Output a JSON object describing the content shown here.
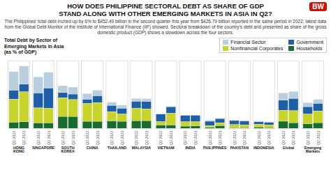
{
  "chart_data": {
    "type": "bar",
    "stacked": true,
    "title": "HOW DOES PHILIPPINE SECTORAL DEBT AS SHARE OF GDP\nSTAND ALONG WITH OTHER EMERGING MARKETS IN ASIA IN Q2?",
    "subtitle": "The Philippines' total debt inched up by 6% to $452.49 billion in the second quarter this year from $426.79 billion reported in the same period in 2022; latest data from the Global Debt Monitor of the Institute of International Finance (IIF) showed. Sectoral breakdown of the country's debt and presented as share of the gross domestic product (GDP) shows a slowdown across the four sectors.",
    "annotations": [
      "Total Debt by Sector of\nEmerging Markets in Asia\n(as % of GDP)",
      "BW"
    ],
    "categories": [
      "HONG KONG",
      "SINGAPORE",
      "SOUTH KOREA",
      "CHINA",
      "THAILAND",
      "MALAYSIA",
      "VIETNAM",
      "INDIA",
      "PHILIPPINES",
      "PAKISTAN",
      "INDONESIA",
      "Global",
      "Emerging\nMarkets"
    ],
    "groups": [
      "Q2 2022",
      "Q2 2023"
    ],
    "series": [
      {
        "name": "Financial Sector",
        "color": "#b8cfe0",
        "values": [
          [
            164.8,
            160.5
          ],
          [
            144.7,
            140.7
          ],
          [
            61.0,
            62.1
          ],
          [
            52.2,
            51.9
          ],
          [
            29.0,
            28.0
          ],
          [
            26.6,
            25.8
          ],
          [
            5.0,
            4.6
          ],
          [
            0.8,
            1.1
          ],
          [
            10.4,
            6.0
          ],
          [
            0.8,
            1.0
          ],
          [
            7.6,
            6.5
          ],
          [
            65.6,
            63.5
          ],
          [
            36.6,
            36.6
          ]
        ]
      },
      {
        "name": "Government",
        "color": "#1e5fa8",
        "values": [
          [
            79.1,
            67.6
          ],
          [
            130.8,
            177.3
          ],
          [
            45.4,
            48.1
          ],
          [
            36.1,
            60.2
          ],
          [
            55.0,
            50.8
          ],
          [
            62.3,
            65.3
          ],
          [
            66.7,
            57.8
          ],
          [
            56.8,
            57.2
          ],
          [
            37.8,
            37.0
          ],
          [
            36.4,
            34.3
          ],
          [
            20.4,
            21.8
          ],
          [
            89.3,
            107.3
          ],
          [
            64.9,
            66.7
          ]
        ]
      },
      {
        "name": "Nonfinancial Corporates",
        "color": "#c8d42a",
        "values": [
          [
            203.3,
            264.8
          ],
          [
            133.0,
            130.3
          ],
          [
            166.0,
            150.0
          ],
          [
            158.0,
            164.9
          ],
          [
            82.7,
            64.1
          ],
          [
            109.2,
            103.8
          ],
          [
            30.1,
            103.5
          ],
          [
            38.7,
            36.9
          ],
          [
            16.3,
            25.3
          ],
          [
            28.4,
            25.2
          ],
          [
            26.4,
            25.3
          ],
          [
            96.4,
            106.7
          ],
          [
            86.1,
            103.7
          ]
        ]
      },
      {
        "name": "Households",
        "color": "#1a6b30",
        "values": [
          [
            54.1,
            58.0
          ],
          [
            48.1,
            48.1
          ],
          [
            105.1,
            104.9
          ],
          [
            62.1,
            62.1
          ],
          [
            64.8,
            62.5
          ],
          [
            67.5,
            68.2
          ],
          [
            29.1,
            29.6
          ],
          [
            19.6,
            21.8
          ],
          [
            9.1,
            23.8
          ],
          [
            5.1,
            5.9
          ],
          [
            11.6,
            6.5
          ],
          [
            63.4,
            49.8
          ],
          [
            40.5,
            49.9
          ]
        ]
      }
    ],
    "ylim": [
      0,
      600
    ],
    "tick_labels": "x",
    "legend": "upper right"
  }
}
